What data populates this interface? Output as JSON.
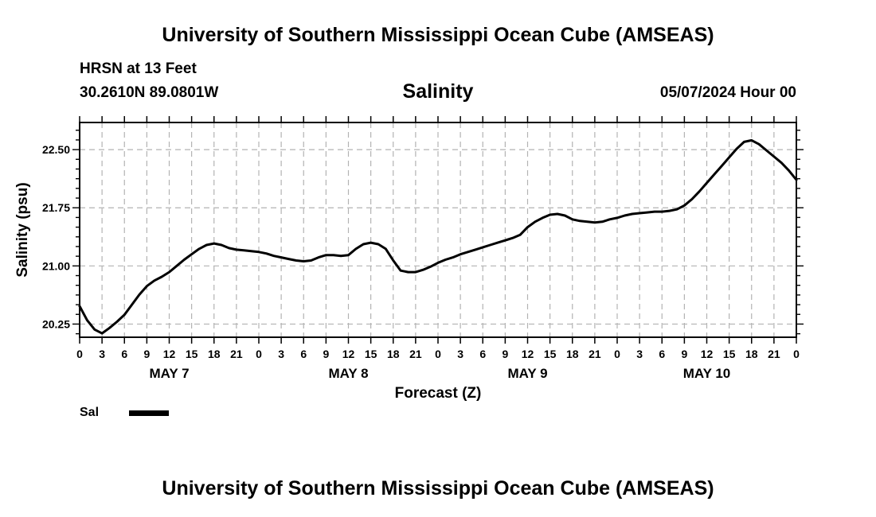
{
  "header": {
    "title": "University of Southern Mississippi Ocean Cube (AMSEAS)",
    "station": "HRSN at 13 Feet",
    "coords": "30.2610N  89.0801W",
    "datetime": "05/07/2024 Hour 00"
  },
  "footer": {
    "title": "University of Southern Mississippi Ocean Cube (AMSEAS)"
  },
  "chart_data": {
    "type": "line",
    "title": "Salinity",
    "xlabel": "Forecast (Z)",
    "ylabel": "Salinity (psu)",
    "xlim": [
      0,
      96
    ],
    "ylim": [
      20.08,
      22.85
    ],
    "grid": true,
    "x_tick_step_hours": 3,
    "x_tick_labels": [
      "0",
      "3",
      "6",
      "9",
      "12",
      "15",
      "18",
      "21",
      "0",
      "3",
      "6",
      "9",
      "12",
      "15",
      "18",
      "21",
      "0",
      "3",
      "6",
      "9",
      "12",
      "15",
      "18",
      "21",
      "0",
      "3",
      "6",
      "9",
      "12",
      "15",
      "18",
      "21",
      "0"
    ],
    "y_ticks": [
      20.25,
      21.0,
      21.75,
      22.5
    ],
    "y_tick_labels": [
      "20.25",
      "21.00",
      "21.75",
      "22.50"
    ],
    "day_labels": [
      {
        "label": "MAY 7",
        "hour": 12
      },
      {
        "label": "MAY 8",
        "hour": 36
      },
      {
        "label": "MAY 9",
        "hour": 60
      },
      {
        "label": "MAY 10",
        "hour": 84
      }
    ],
    "legend": [
      {
        "label": "Sal",
        "color": "#000000"
      }
    ],
    "series": [
      {
        "name": "Sal",
        "x": [
          0,
          1,
          2,
          3,
          4,
          5,
          6,
          7,
          8,
          9,
          10,
          11,
          12,
          13,
          14,
          15,
          16,
          17,
          18,
          19,
          20,
          21,
          22,
          23,
          24,
          25,
          26,
          27,
          28,
          29,
          30,
          31,
          32,
          33,
          34,
          35,
          36,
          37,
          38,
          39,
          40,
          41,
          42,
          43,
          44,
          45,
          46,
          47,
          48,
          49,
          50,
          51,
          52,
          53,
          54,
          55,
          56,
          57,
          58,
          59,
          60,
          61,
          62,
          63,
          64,
          65,
          66,
          67,
          68,
          69,
          70,
          71,
          72,
          73,
          74,
          75,
          76,
          77,
          78,
          79,
          80,
          81,
          82,
          83,
          84,
          85,
          86,
          87,
          88,
          89,
          90,
          91,
          92,
          93,
          94,
          95,
          96
        ],
        "values": [
          20.48,
          20.3,
          20.18,
          20.13,
          20.2,
          20.28,
          20.37,
          20.5,
          20.63,
          20.74,
          20.81,
          20.86,
          20.92,
          21.0,
          21.08,
          21.15,
          21.22,
          21.27,
          21.29,
          21.27,
          21.23,
          21.21,
          21.2,
          21.19,
          21.18,
          21.16,
          21.13,
          21.11,
          21.09,
          21.07,
          21.06,
          21.07,
          21.11,
          21.14,
          21.14,
          21.13,
          21.14,
          21.22,
          21.28,
          21.3,
          21.28,
          21.22,
          21.07,
          20.94,
          20.92,
          20.92,
          20.95,
          20.99,
          21.04,
          21.08,
          21.11,
          21.15,
          21.18,
          21.21,
          21.24,
          21.27,
          21.3,
          21.33,
          21.36,
          21.4,
          21.5,
          21.57,
          21.62,
          21.66,
          21.67,
          21.65,
          21.6,
          21.58,
          21.57,
          21.56,
          21.57,
          21.6,
          21.62,
          21.65,
          21.67,
          21.68,
          21.69,
          21.7,
          21.7,
          21.71,
          21.73,
          21.78,
          21.86,
          21.96,
          22.07,
          22.18,
          22.29,
          22.4,
          22.51,
          22.6,
          22.62,
          22.57,
          22.49,
          22.41,
          22.33,
          22.23,
          22.11
        ]
      }
    ]
  }
}
